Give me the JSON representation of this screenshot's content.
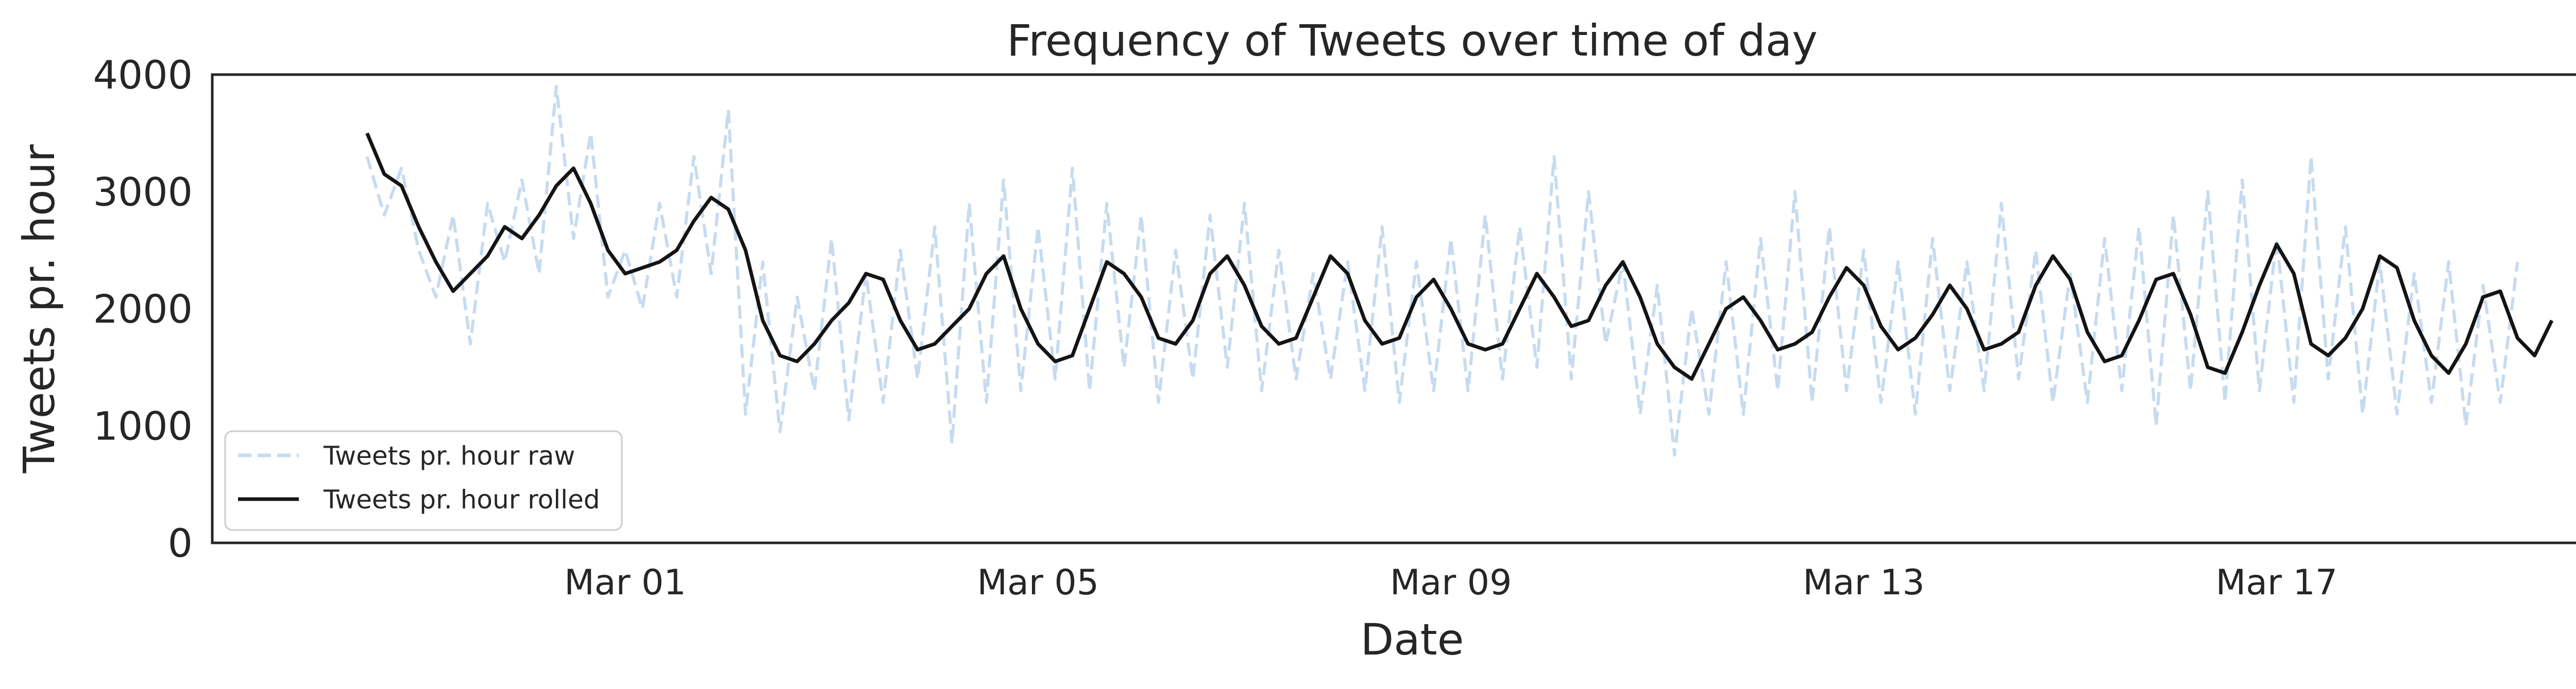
{
  "chart_data": {
    "type": "line",
    "title": "Frequency of Tweets over time of day",
    "xlabel": "Date",
    "ylabel": "Tweets pr. hour",
    "x_axis_type": "datetime",
    "xlim": [
      "2023-02-25T00:00",
      "2023-03-20T06:00"
    ],
    "ylim": [
      0,
      4000
    ],
    "yticks": [
      0,
      1000,
      2000,
      3000,
      4000
    ],
    "xticks": [
      {
        "date": "2023-03-01",
        "label": "Mar 01"
      },
      {
        "date": "2023-03-05",
        "label": "Mar 05"
      },
      {
        "date": "2023-03-09",
        "label": "Mar 09"
      },
      {
        "date": "2023-03-13",
        "label": "Mar 13"
      },
      {
        "date": "2023-03-17",
        "label": "Mar 17"
      }
    ],
    "grid": false,
    "legend_position": "lower-left",
    "series": [
      {
        "name": "Tweets pr. hour raw",
        "color": "#c6dbef",
        "style": "dashed",
        "points": [
          [
            "2023-02-26T12:00",
            3300
          ],
          [
            "2023-02-26T16:00",
            2800
          ],
          [
            "2023-02-26T20:00",
            3200
          ],
          [
            "2023-02-27T00:00",
            2500
          ],
          [
            "2023-02-27T04:00",
            2100
          ],
          [
            "2023-02-27T08:00",
            2800
          ],
          [
            "2023-02-27T12:00",
            1700
          ],
          [
            "2023-02-27T16:00",
            2900
          ],
          [
            "2023-02-27T20:00",
            2400
          ],
          [
            "2023-02-28T00:00",
            3100
          ],
          [
            "2023-02-28T04:00",
            2300
          ],
          [
            "2023-02-28T08:00",
            3900
          ],
          [
            "2023-02-28T12:00",
            2600
          ],
          [
            "2023-02-28T16:00",
            3500
          ],
          [
            "2023-02-28T20:00",
            2100
          ],
          [
            "2023-03-01T00:00",
            2500
          ],
          [
            "2023-03-01T04:00",
            2000
          ],
          [
            "2023-03-01T08:00",
            2900
          ],
          [
            "2023-03-01T12:00",
            2100
          ],
          [
            "2023-03-01T16:00",
            3300
          ],
          [
            "2023-03-01T20:00",
            2300
          ],
          [
            "2023-03-02T00:00",
            3700
          ],
          [
            "2023-03-02T04:00",
            1100
          ],
          [
            "2023-03-02T08:00",
            2400
          ],
          [
            "2023-03-02T12:00",
            950
          ],
          [
            "2023-03-02T16:00",
            2100
          ],
          [
            "2023-03-02T20:00",
            1300
          ],
          [
            "2023-03-03T00:00",
            2600
          ],
          [
            "2023-03-03T04:00",
            1050
          ],
          [
            "2023-03-03T08:00",
            2300
          ],
          [
            "2023-03-03T12:00",
            1200
          ],
          [
            "2023-03-03T16:00",
            2500
          ],
          [
            "2023-03-03T20:00",
            1400
          ],
          [
            "2023-03-04T00:00",
            2700
          ],
          [
            "2023-03-04T04:00",
            850
          ],
          [
            "2023-03-04T08:00",
            2900
          ],
          [
            "2023-03-04T12:00",
            1200
          ],
          [
            "2023-03-04T16:00",
            3100
          ],
          [
            "2023-03-04T20:00",
            1300
          ],
          [
            "2023-03-05T00:00",
            2700
          ],
          [
            "2023-03-05T04:00",
            1400
          ],
          [
            "2023-03-05T08:00",
            3200
          ],
          [
            "2023-03-05T12:00",
            1300
          ],
          [
            "2023-03-05T16:00",
            2900
          ],
          [
            "2023-03-05T20:00",
            1500
          ],
          [
            "2023-03-06T00:00",
            2800
          ],
          [
            "2023-03-06T04:00",
            1200
          ],
          [
            "2023-03-06T08:00",
            2500
          ],
          [
            "2023-03-06T12:00",
            1400
          ],
          [
            "2023-03-06T16:00",
            2800
          ],
          [
            "2023-03-06T20:00",
            1500
          ],
          [
            "2023-03-07T00:00",
            2900
          ],
          [
            "2023-03-07T04:00",
            1300
          ],
          [
            "2023-03-07T08:00",
            2500
          ],
          [
            "2023-03-07T12:00",
            1400
          ],
          [
            "2023-03-07T16:00",
            2300
          ],
          [
            "2023-03-07T20:00",
            1400
          ],
          [
            "2023-03-08T00:00",
            2400
          ],
          [
            "2023-03-08T04:00",
            1300
          ],
          [
            "2023-03-08T08:00",
            2700
          ],
          [
            "2023-03-08T12:00",
            1200
          ],
          [
            "2023-03-08T16:00",
            2400
          ],
          [
            "2023-03-08T20:00",
            1300
          ],
          [
            "2023-03-09T00:00",
            2600
          ],
          [
            "2023-03-09T04:00",
            1300
          ],
          [
            "2023-03-09T08:00",
            2800
          ],
          [
            "2023-03-09T12:00",
            1400
          ],
          [
            "2023-03-09T16:00",
            2700
          ],
          [
            "2023-03-09T20:00",
            1500
          ],
          [
            "2023-03-10T00:00",
            3300
          ],
          [
            "2023-03-10T04:00",
            1400
          ],
          [
            "2023-03-10T08:00",
            3000
          ],
          [
            "2023-03-10T12:00",
            1700
          ],
          [
            "2023-03-10T16:00",
            2400
          ],
          [
            "2023-03-10T20:00",
            1100
          ],
          [
            "2023-03-11T00:00",
            2200
          ],
          [
            "2023-03-11T04:00",
            750
          ],
          [
            "2023-03-11T08:00",
            2000
          ],
          [
            "2023-03-11T12:00",
            1100
          ],
          [
            "2023-03-11T16:00",
            2400
          ],
          [
            "2023-03-11T20:00",
            1100
          ],
          [
            "2023-03-12T00:00",
            2600
          ],
          [
            "2023-03-12T04:00",
            1300
          ],
          [
            "2023-03-12T08:00",
            3000
          ],
          [
            "2023-03-12T12:00",
            1200
          ],
          [
            "2023-03-12T16:00",
            2700
          ],
          [
            "2023-03-12T20:00",
            1300
          ],
          [
            "2023-03-13T00:00",
            2500
          ],
          [
            "2023-03-13T04:00",
            1200
          ],
          [
            "2023-03-13T08:00",
            2400
          ],
          [
            "2023-03-13T12:00",
            1100
          ],
          [
            "2023-03-13T16:00",
            2600
          ],
          [
            "2023-03-13T20:00",
            1300
          ],
          [
            "2023-03-14T00:00",
            2400
          ],
          [
            "2023-03-14T04:00",
            1300
          ],
          [
            "2023-03-14T08:00",
            2900
          ],
          [
            "2023-03-14T12:00",
            1400
          ],
          [
            "2023-03-14T16:00",
            2500
          ],
          [
            "2023-03-14T20:00",
            1200
          ],
          [
            "2023-03-15T00:00",
            2300
          ],
          [
            "2023-03-15T04:00",
            1200
          ],
          [
            "2023-03-15T08:00",
            2600
          ],
          [
            "2023-03-15T12:00",
            1300
          ],
          [
            "2023-03-15T16:00",
            2700
          ],
          [
            "2023-03-15T20:00",
            1000
          ],
          [
            "2023-03-16T00:00",
            2800
          ],
          [
            "2023-03-16T04:00",
            1300
          ],
          [
            "2023-03-16T08:00",
            3000
          ],
          [
            "2023-03-16T12:00",
            1200
          ],
          [
            "2023-03-16T16:00",
            3100
          ],
          [
            "2023-03-16T20:00",
            1300
          ],
          [
            "2023-03-17T00:00",
            2600
          ],
          [
            "2023-03-17T04:00",
            1200
          ],
          [
            "2023-03-17T08:00",
            3300
          ],
          [
            "2023-03-17T12:00",
            1400
          ],
          [
            "2023-03-17T16:00",
            2700
          ],
          [
            "2023-03-17T20:00",
            1100
          ],
          [
            "2023-03-18T00:00",
            2400
          ],
          [
            "2023-03-18T04:00",
            1100
          ],
          [
            "2023-03-18T08:00",
            2300
          ],
          [
            "2023-03-18T12:00",
            1200
          ],
          [
            "2023-03-18T16:00",
            2400
          ],
          [
            "2023-03-18T20:00",
            1000
          ],
          [
            "2023-03-19T00:00",
            2200
          ],
          [
            "2023-03-19T04:00",
            1200
          ],
          [
            "2023-03-19T08:00",
            2400
          ]
        ]
      },
      {
        "name": "Tweets pr. hour rolled",
        "color": "#141414",
        "style": "solid",
        "points": [
          [
            "2023-02-26T12:00",
            3500
          ],
          [
            "2023-02-26T16:00",
            3150
          ],
          [
            "2023-02-26T20:00",
            3050
          ],
          [
            "2023-02-27T00:00",
            2700
          ],
          [
            "2023-02-27T04:00",
            2400
          ],
          [
            "2023-02-27T08:00",
            2150
          ],
          [
            "2023-02-27T12:00",
            2300
          ],
          [
            "2023-02-27T16:00",
            2450
          ],
          [
            "2023-02-27T20:00",
            2700
          ],
          [
            "2023-02-28T00:00",
            2600
          ],
          [
            "2023-02-28T04:00",
            2800
          ],
          [
            "2023-02-28T08:00",
            3050
          ],
          [
            "2023-02-28T12:00",
            3200
          ],
          [
            "2023-02-28T16:00",
            2900
          ],
          [
            "2023-02-28T20:00",
            2500
          ],
          [
            "2023-03-01T00:00",
            2300
          ],
          [
            "2023-03-01T04:00",
            2350
          ],
          [
            "2023-03-01T08:00",
            2400
          ],
          [
            "2023-03-01T12:00",
            2500
          ],
          [
            "2023-03-01T16:00",
            2750
          ],
          [
            "2023-03-01T20:00",
            2950
          ],
          [
            "2023-03-02T00:00",
            2850
          ],
          [
            "2023-03-02T04:00",
            2500
          ],
          [
            "2023-03-02T08:00",
            1900
          ],
          [
            "2023-03-02T12:00",
            1600
          ],
          [
            "2023-03-02T16:00",
            1550
          ],
          [
            "2023-03-02T20:00",
            1700
          ],
          [
            "2023-03-03T00:00",
            1900
          ],
          [
            "2023-03-03T04:00",
            2050
          ],
          [
            "2023-03-03T08:00",
            2300
          ],
          [
            "2023-03-03T12:00",
            2250
          ],
          [
            "2023-03-03T16:00",
            1900
          ],
          [
            "2023-03-03T20:00",
            1650
          ],
          [
            "2023-03-04T00:00",
            1700
          ],
          [
            "2023-03-04T04:00",
            1850
          ],
          [
            "2023-03-04T08:00",
            2000
          ],
          [
            "2023-03-04T12:00",
            2300
          ],
          [
            "2023-03-04T16:00",
            2450
          ],
          [
            "2023-03-04T20:00",
            2000
          ],
          [
            "2023-03-05T00:00",
            1700
          ],
          [
            "2023-03-05T04:00",
            1550
          ],
          [
            "2023-03-05T08:00",
            1600
          ],
          [
            "2023-03-05T12:00",
            2000
          ],
          [
            "2023-03-05T16:00",
            2400
          ],
          [
            "2023-03-05T20:00",
            2300
          ],
          [
            "2023-03-06T00:00",
            2100
          ],
          [
            "2023-03-06T04:00",
            1750
          ],
          [
            "2023-03-06T08:00",
            1700
          ],
          [
            "2023-03-06T12:00",
            1900
          ],
          [
            "2023-03-06T16:00",
            2300
          ],
          [
            "2023-03-06T20:00",
            2450
          ],
          [
            "2023-03-07T00:00",
            2200
          ],
          [
            "2023-03-07T04:00",
            1850
          ],
          [
            "2023-03-07T08:00",
            1700
          ],
          [
            "2023-03-07T12:00",
            1750
          ],
          [
            "2023-03-07T16:00",
            2100
          ],
          [
            "2023-03-07T20:00",
            2450
          ],
          [
            "2023-03-08T00:00",
            2300
          ],
          [
            "2023-03-08T04:00",
            1900
          ],
          [
            "2023-03-08T08:00",
            1700
          ],
          [
            "2023-03-08T12:00",
            1750
          ],
          [
            "2023-03-08T16:00",
            2100
          ],
          [
            "2023-03-08T20:00",
            2250
          ],
          [
            "2023-03-09T00:00",
            2000
          ],
          [
            "2023-03-09T04:00",
            1700
          ],
          [
            "2023-03-09T08:00",
            1650
          ],
          [
            "2023-03-09T12:00",
            1700
          ],
          [
            "2023-03-09T16:00",
            2000
          ],
          [
            "2023-03-09T20:00",
            2300
          ],
          [
            "2023-03-10T00:00",
            2100
          ],
          [
            "2023-03-10T04:00",
            1850
          ],
          [
            "2023-03-10T08:00",
            1900
          ],
          [
            "2023-03-10T12:00",
            2200
          ],
          [
            "2023-03-10T16:00",
            2400
          ],
          [
            "2023-03-10T20:00",
            2100
          ],
          [
            "2023-03-11T00:00",
            1700
          ],
          [
            "2023-03-11T04:00",
            1500
          ],
          [
            "2023-03-11T08:00",
            1400
          ],
          [
            "2023-03-11T12:00",
            1700
          ],
          [
            "2023-03-11T16:00",
            2000
          ],
          [
            "2023-03-11T20:00",
            2100
          ],
          [
            "2023-03-12T00:00",
            1900
          ],
          [
            "2023-03-12T04:00",
            1650
          ],
          [
            "2023-03-12T08:00",
            1700
          ],
          [
            "2023-03-12T12:00",
            1800
          ],
          [
            "2023-03-12T16:00",
            2100
          ],
          [
            "2023-03-12T20:00",
            2350
          ],
          [
            "2023-03-13T00:00",
            2200
          ],
          [
            "2023-03-13T04:00",
            1850
          ],
          [
            "2023-03-13T08:00",
            1650
          ],
          [
            "2023-03-13T12:00",
            1750
          ],
          [
            "2023-03-13T16:00",
            1950
          ],
          [
            "2023-03-13T20:00",
            2200
          ],
          [
            "2023-03-14T00:00",
            2000
          ],
          [
            "2023-03-14T04:00",
            1650
          ],
          [
            "2023-03-14T08:00",
            1700
          ],
          [
            "2023-03-14T12:00",
            1800
          ],
          [
            "2023-03-14T16:00",
            2200
          ],
          [
            "2023-03-14T20:00",
            2450
          ],
          [
            "2023-03-15T00:00",
            2250
          ],
          [
            "2023-03-15T04:00",
            1800
          ],
          [
            "2023-03-15T08:00",
            1550
          ],
          [
            "2023-03-15T12:00",
            1600
          ],
          [
            "2023-03-15T16:00",
            1900
          ],
          [
            "2023-03-15T20:00",
            2250
          ],
          [
            "2023-03-16T00:00",
            2300
          ],
          [
            "2023-03-16T04:00",
            1950
          ],
          [
            "2023-03-16T08:00",
            1500
          ],
          [
            "2023-03-16T12:00",
            1450
          ],
          [
            "2023-03-16T16:00",
            1800
          ],
          [
            "2023-03-16T20:00",
            2200
          ],
          [
            "2023-03-17T00:00",
            2550
          ],
          [
            "2023-03-17T04:00",
            2300
          ],
          [
            "2023-03-17T08:00",
            1700
          ],
          [
            "2023-03-17T12:00",
            1600
          ],
          [
            "2023-03-17T16:00",
            1750
          ],
          [
            "2023-03-17T20:00",
            2000
          ],
          [
            "2023-03-18T00:00",
            2450
          ],
          [
            "2023-03-18T04:00",
            2350
          ],
          [
            "2023-03-18T08:00",
            1900
          ],
          [
            "2023-03-18T12:00",
            1600
          ],
          [
            "2023-03-18T16:00",
            1450
          ],
          [
            "2023-03-18T20:00",
            1700
          ],
          [
            "2023-03-19T00:00",
            2100
          ],
          [
            "2023-03-19T04:00",
            2150
          ],
          [
            "2023-03-19T08:00",
            1750
          ],
          [
            "2023-03-19T12:00",
            1600
          ],
          [
            "2023-03-19T16:00",
            1900
          ]
        ]
      }
    ]
  }
}
